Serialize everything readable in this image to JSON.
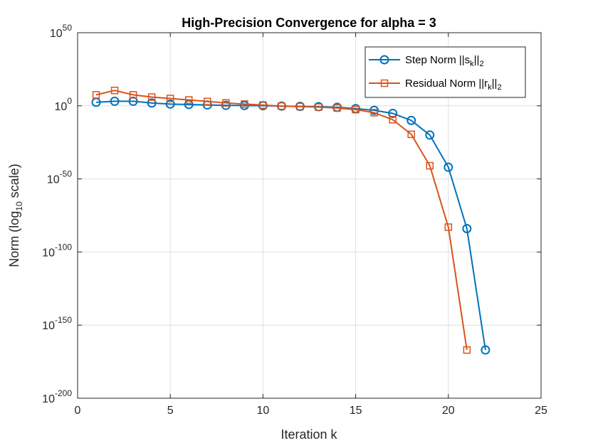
{
  "chart_data": {
    "type": "line",
    "title": "High-Precision Convergence for alpha = 3",
    "xlabel": "Iteration k",
    "ylabel": {
      "prefix": "Norm (log",
      "sub": "10",
      "suffix": " scale)"
    },
    "xlim": [
      0,
      25
    ],
    "ylim_exponent": [
      -200,
      50
    ],
    "y_scale": "log",
    "grid": true,
    "legend_position": "top-right",
    "x_ticks": [
      0,
      5,
      10,
      15,
      20,
      25
    ],
    "y_tick_exponents": [
      50,
      0,
      -50,
      -100,
      -150,
      -200
    ],
    "y_tick_base": "10",
    "series": [
      {
        "name": "Step Norm ||s_k||_2",
        "legend": {
          "main": "Step Norm ||s",
          "sub": "k",
          "end": "||",
          "sub2": "2"
        },
        "color": "#0072BD",
        "marker": "circle",
        "x": [
          1,
          2,
          3,
          4,
          5,
          6,
          7,
          8,
          9,
          10,
          11,
          12,
          13,
          14,
          15,
          16,
          17,
          18,
          19,
          20,
          21,
          22
        ],
        "log10_values": [
          2.4,
          3.1,
          3.1,
          1.9,
          1.2,
          0.9,
          0.6,
          0.3,
          0.2,
          0.1,
          -0.2,
          -0.4,
          -0.6,
          -1.0,
          -1.9,
          -3.1,
          -5.2,
          -10.0,
          -20.0,
          -42.0,
          -84.0,
          -167.0
        ]
      },
      {
        "name": "Residual Norm ||r_k||_2",
        "legend": {
          "main": "Residual Norm ||r",
          "sub": "k",
          "end": "||",
          "sub2": "2"
        },
        "color": "#D95319",
        "marker": "square",
        "x": [
          1,
          2,
          3,
          4,
          5,
          6,
          7,
          8,
          9,
          10,
          11,
          12,
          13,
          14,
          15,
          16,
          17,
          18,
          19,
          20,
          21
        ],
        "log10_values": [
          7.5,
          10.5,
          7.5,
          6.0,
          5.0,
          4.0,
          3.0,
          2.0,
          1.2,
          0.5,
          -0.2,
          -0.5,
          -0.9,
          -1.5,
          -2.6,
          -4.7,
          -9.5,
          -19.5,
          -41.0,
          -83.0,
          -167.0
        ]
      }
    ]
  }
}
